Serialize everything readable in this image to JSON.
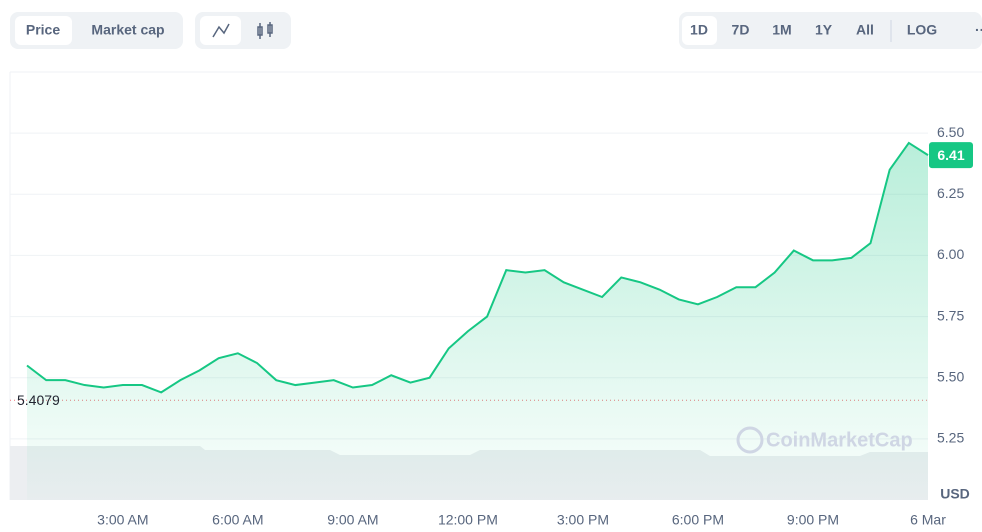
{
  "toolbar": {
    "metric_tabs": [
      "Price",
      "Market cap"
    ],
    "ranges": [
      "1D",
      "7D",
      "1M",
      "1Y",
      "All"
    ],
    "scale_button": "LOG"
  },
  "chart_data": {
    "type": "line",
    "categories": [
      null,
      null,
      null,
      null,
      null,
      "3:00 AM",
      null,
      null,
      null,
      null,
      null,
      "6:00 AM",
      null,
      null,
      null,
      null,
      null,
      "9:00 AM",
      null,
      null,
      null,
      null,
      null,
      "12:00 PM",
      null,
      null,
      null,
      null,
      null,
      "3:00 PM",
      null,
      null,
      null,
      null,
      null,
      "6:00 PM",
      null,
      null,
      null,
      null,
      null,
      "9:00 PM",
      null,
      null,
      null,
      null,
      null,
      "6 Mar"
    ],
    "values": [
      5.55,
      5.49,
      5.49,
      5.47,
      5.46,
      5.47,
      5.47,
      5.44,
      5.49,
      5.53,
      5.58,
      5.6,
      5.56,
      5.49,
      5.47,
      5.48,
      5.49,
      5.46,
      5.47,
      5.51,
      5.48,
      5.5,
      5.62,
      5.69,
      5.75,
      5.94,
      5.93,
      5.94,
      5.89,
      5.86,
      5.83,
      5.91,
      5.89,
      5.86,
      5.82,
      5.8,
      5.83,
      5.87,
      5.87,
      5.93,
      6.02,
      5.98,
      5.98,
      5.99,
      6.05,
      6.35,
      6.46,
      6.41
    ],
    "color": "#16c784",
    "ylim": [
      5.0,
      6.75
    ],
    "yticks": [
      5.25,
      {
        "value": 5.5,
        "label": "5.50"
      },
      5.75,
      {
        "value": 6.0,
        "label": "6.00"
      },
      6.25,
      {
        "value": 6.5,
        "label": "6.50"
      }
    ],
    "grid": true,
    "current_price": 6.41,
    "open_price": 5.4079,
    "currency": "USD",
    "watermark": "CoinMarketCap"
  }
}
